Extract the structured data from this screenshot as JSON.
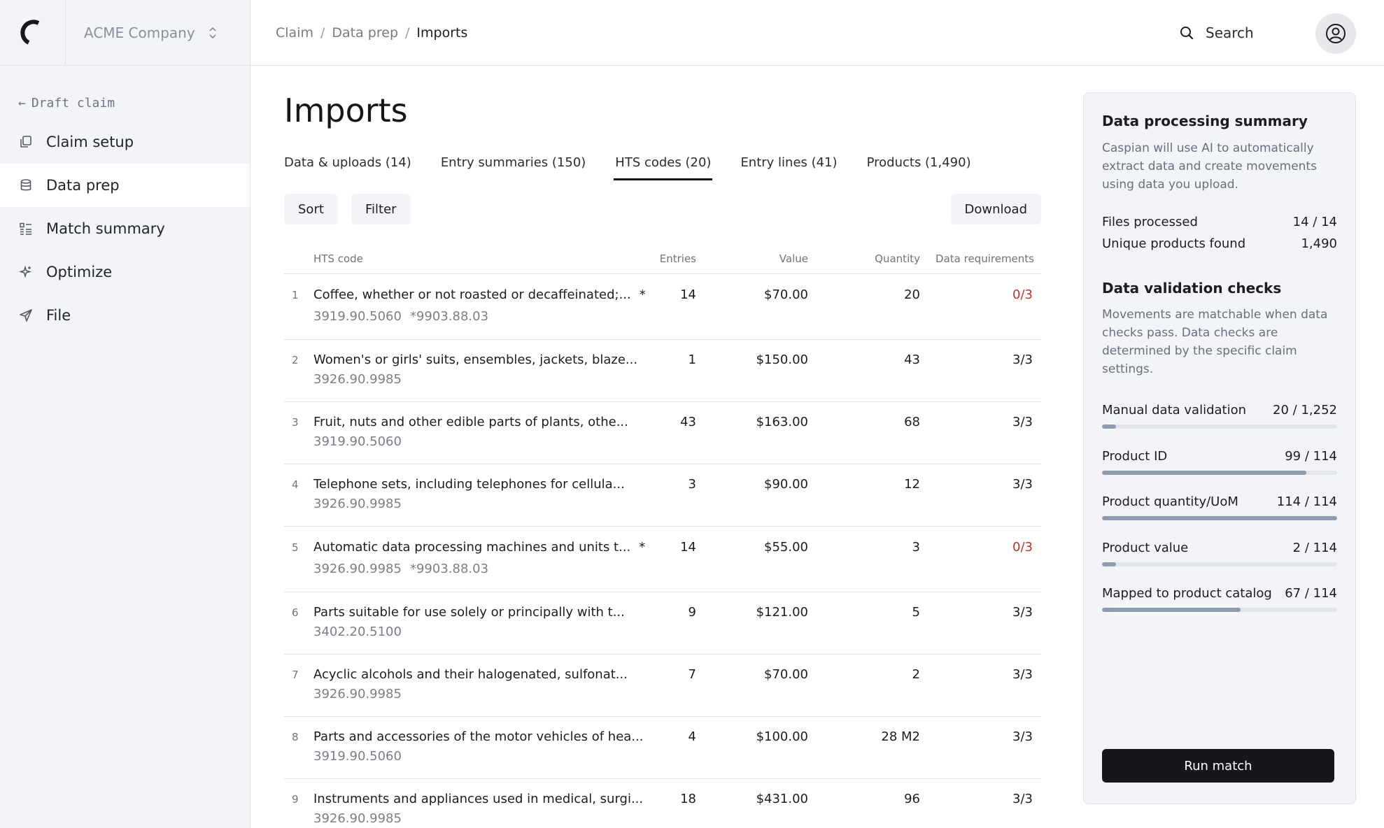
{
  "sidebar": {
    "company": "ACME Company",
    "back_label": "Draft claim",
    "items": [
      {
        "label": "Claim setup",
        "icon": "copy-icon"
      },
      {
        "label": "Data prep",
        "icon": "database-icon"
      },
      {
        "label": "Match summary",
        "icon": "list-icon"
      },
      {
        "label": "Optimize",
        "icon": "sparkle-icon"
      },
      {
        "label": "File",
        "icon": "send-icon"
      }
    ]
  },
  "header": {
    "breadcrumb": [
      "Claim",
      "Data prep",
      "Imports"
    ],
    "search_label": "Search"
  },
  "main": {
    "title": "Imports",
    "tabs": [
      {
        "label": "Data & uploads (14)"
      },
      {
        "label": "Entry summaries (150)"
      },
      {
        "label": "HTS codes (20)"
      },
      {
        "label": "Entry lines (41)"
      },
      {
        "label": "Products (1,490)"
      }
    ],
    "buttons": {
      "sort": "Sort",
      "filter": "Filter",
      "download": "Download"
    },
    "table": {
      "headers": {
        "hts_code": "HTS code",
        "entries": "Entries",
        "value": "Value",
        "quantity": "Quantity",
        "requirements": "Data requirements"
      },
      "rows": [
        {
          "num": "1",
          "name": "Coffee, whether or not roasted or decaffeinated;...",
          "star": "*",
          "code": "3919.90.5060",
          "code2": "*9903.88.03",
          "entries": "14",
          "value": "$70.00",
          "quantity": "20",
          "req": "0/3"
        },
        {
          "num": "2",
          "name": "Women's or girls' suits, ensembles, jackets, blaze...",
          "star": "",
          "code": "3926.90.9985",
          "code2": "",
          "entries": "1",
          "value": "$150.00",
          "quantity": "43",
          "req": "3/3"
        },
        {
          "num": "3",
          "name": "Fruit, nuts and other edible parts of plants, othe...",
          "star": "",
          "code": "3919.90.5060",
          "code2": "",
          "entries": "43",
          "value": "$163.00",
          "quantity": "68",
          "req": "3/3"
        },
        {
          "num": "4",
          "name": "Telephone sets, including telephones for cellula...",
          "star": "",
          "code": "3926.90.9985",
          "code2": "",
          "entries": "3",
          "value": "$90.00",
          "quantity": "12",
          "req": "3/3"
        },
        {
          "num": "5",
          "name": "Automatic data processing machines and units t...",
          "star": "*",
          "code": "3926.90.9985",
          "code2": "*9903.88.03",
          "entries": "14",
          "value": "$55.00",
          "quantity": "3",
          "req": "0/3"
        },
        {
          "num": "6",
          "name": "Parts suitable for use solely or principally with t...",
          "star": "",
          "code": "3402.20.5100",
          "code2": "",
          "entries": "9",
          "value": "$121.00",
          "quantity": "5",
          "req": "3/3"
        },
        {
          "num": "7",
          "name": "Acyclic alcohols and their halogenated, sulfonat...",
          "star": "",
          "code": "3926.90.9985",
          "code2": "",
          "entries": "7",
          "value": "$70.00",
          "quantity": "2",
          "req": "3/3"
        },
        {
          "num": "8",
          "name": "Parts and accessories of the motor vehicles of hea...",
          "star": "",
          "code": "3919.90.5060",
          "code2": "",
          "entries": "4",
          "value": "$100.00",
          "quantity": "28 M2",
          "req": "3/3"
        },
        {
          "num": "9",
          "name": "Instruments and appliances used in medical, surgi...",
          "star": "",
          "code": "3926.90.9985",
          "code2": "",
          "entries": "18",
          "value": "$431.00",
          "quantity": "96",
          "req": "3/3"
        }
      ]
    }
  },
  "panel": {
    "summary_title": "Data processing summary",
    "summary_desc": "Caspian will use AI to automatically extract data and create movements using data you upload.",
    "stats": [
      {
        "label": "Files processed",
        "value": "14 / 14"
      },
      {
        "label": "Unique products found",
        "value": "1,490"
      }
    ],
    "checks_title": "Data validation checks",
    "checks_desc": "Movements are matchable when data checks pass. Data checks are determined by the specific claim settings.",
    "checks": [
      {
        "label": "Manual data validation",
        "value": "20 / 1,252",
        "fraction": 0.016
      },
      {
        "label": "Product ID",
        "value": "99 / 114",
        "fraction": 0.868
      },
      {
        "label": "Product quantity/UoM",
        "value": "114 / 114",
        "fraction": 1.0
      },
      {
        "label": "Product value",
        "value": "2 / 114",
        "fraction": 0.018
      },
      {
        "label": "Mapped to product catalog",
        "value": "67 / 114",
        "fraction": 0.588
      }
    ],
    "run_label": "Run match"
  }
}
